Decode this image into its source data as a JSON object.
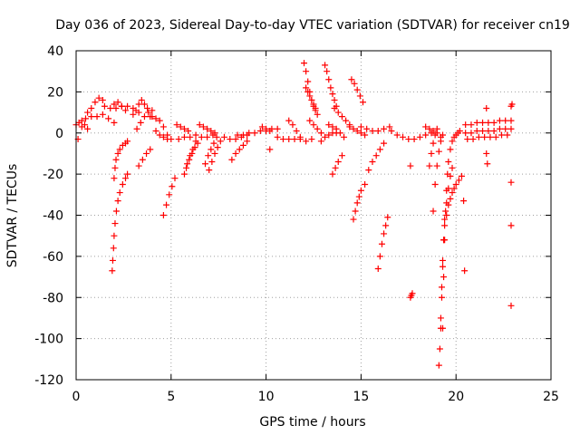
{
  "chart_data": {
    "type": "scatter",
    "title": "Day 036 of 2023, Sidereal Day-to-day VTEC variation (SDTVAR) for receiver cn19",
    "xlabel": "GPS time / hours",
    "ylabel": "SDTVAR / TECUs",
    "xlim": [
      0,
      25
    ],
    "ylim": [
      -120,
      40
    ],
    "x_ticks": [
      0,
      5,
      10,
      15,
      20,
      25
    ],
    "y_ticks": [
      -120,
      -100,
      -80,
      -60,
      -40,
      -20,
      0,
      20,
      40
    ],
    "grid": true,
    "marker": "+",
    "color": "#ff0000",
    "segments": [
      {
        "x": [
          0.0,
          0.15,
          0.3,
          0.45,
          0.6
        ],
        "y": [
          4,
          5,
          3,
          4,
          2
        ]
      },
      {
        "x": [
          0.6,
          0.8,
          1.0,
          1.2,
          1.4,
          1.5
        ],
        "y": [
          10,
          12,
          15,
          17,
          16,
          13
        ]
      },
      {
        "x": [
          0.3,
          0.5,
          0.8,
          1.1,
          1.4,
          1.7,
          2.0
        ],
        "y": [
          6,
          7,
          8,
          8,
          9,
          7,
          5
        ]
      },
      {
        "x": [
          1.8,
          2.0,
          2.2,
          2.4,
          2.6
        ],
        "y": [
          12,
          14,
          15,
          13,
          11
        ]
      },
      {
        "x": [
          2.1,
          2.4,
          2.7,
          3.0,
          3.3
        ],
        "y": [
          12,
          13,
          13,
          12,
          10
        ]
      },
      {
        "x": [
          2.0,
          2.05,
          2.1,
          2.2,
          2.3,
          2.45,
          2.6,
          2.7
        ],
        "y": [
          -22,
          -17,
          -13,
          -10,
          -8,
          -6,
          -5,
          -4
        ]
      },
      {
        "x": [
          1.9,
          1.93,
          1.97,
          2.0,
          2.05,
          2.12,
          2.2,
          2.3,
          2.45,
          2.6,
          2.7
        ],
        "y": [
          -67,
          -62,
          -56,
          -50,
          -44,
          -38,
          -33,
          -29,
          -25,
          -22,
          -20
        ]
      },
      {
        "x": [
          3.0,
          3.15,
          3.3,
          3.45,
          3.6,
          3.75,
          3.9
        ],
        "y": [
          9,
          11,
          14,
          16,
          14,
          12,
          8
        ]
      },
      {
        "x": [
          3.2,
          3.4,
          3.6,
          3.8,
          4.0
        ],
        "y": [
          2,
          5,
          8,
          10,
          11
        ]
      },
      {
        "x": [
          3.3,
          3.5,
          3.7,
          3.9
        ],
        "y": [
          -16,
          -13,
          -10,
          -8
        ]
      },
      {
        "x": [
          4.0,
          4.2,
          4.4,
          4.6,
          4.8
        ],
        "y": [
          8,
          7,
          6,
          3,
          -1
        ]
      },
      {
        "x": [
          4.2,
          4.4,
          4.6,
          4.8,
          5.0
        ],
        "y": [
          1,
          -1,
          -2,
          -3,
          -3
        ]
      },
      {
        "x": [
          4.6,
          4.75,
          4.9,
          5.05,
          5.2
        ],
        "y": [
          -40,
          -35,
          -30,
          -26,
          -22
        ]
      },
      {
        "x": [
          5.3,
          5.5,
          5.7,
          5.9
        ],
        "y": [
          4,
          3,
          2,
          1
        ]
      },
      {
        "x": [
          5.4,
          5.7,
          6.0,
          6.3,
          6.6,
          6.9,
          7.2
        ],
        "y": [
          -3,
          -2,
          -2,
          -1,
          -2,
          -2,
          -1
        ]
      },
      {
        "x": [
          5.7,
          5.85,
          6.0,
          6.15,
          6.3
        ],
        "y": [
          -20,
          -15,
          -11,
          -8,
          -4
        ]
      },
      {
        "x": [
          5.8,
          5.95,
          6.1,
          6.25,
          6.4
        ],
        "y": [
          -17,
          -13,
          -10,
          -7,
          -5
        ]
      },
      {
        "x": [
          6.5,
          6.7,
          6.9,
          7.1,
          7.3
        ],
        "y": [
          4,
          3,
          2,
          1,
          0
        ]
      },
      {
        "x": [
          6.8,
          6.95,
          7.1,
          7.25,
          7.4
        ],
        "y": [
          -15,
          -11,
          -8,
          -5,
          -2
        ]
      },
      {
        "x": [
          7.0,
          7.15,
          7.3,
          7.45,
          7.6
        ],
        "y": [
          -18,
          -14,
          -10,
          -7,
          -4
        ]
      },
      {
        "x": [
          7.8,
          8.1,
          8.4,
          8.7,
          9.0
        ],
        "y": [
          -2,
          -3,
          -3,
          -2,
          -1
        ]
      },
      {
        "x": [
          8.2,
          8.4,
          8.6,
          8.8,
          9.0
        ],
        "y": [
          -13,
          -10,
          -8,
          -6,
          -4
        ]
      },
      {
        "x": [
          8.5,
          8.8,
          9.1,
          9.4,
          9.7,
          10.0,
          10.3,
          10.6
        ],
        "y": [
          -1,
          -1,
          0,
          0,
          1,
          1,
          2,
          2
        ]
      },
      {
        "x": [
          9.8,
          10.0,
          10.2
        ],
        "y": [
          3,
          2,
          1
        ]
      },
      {
        "x": [
          10.6,
          10.9,
          11.2,
          11.5,
          11.8,
          12.1,
          12.4
        ],
        "y": [
          -2,
          -3,
          -3,
          -3,
          -3,
          -4,
          -3
        ]
      },
      {
        "x": [
          11.2,
          11.4,
          11.6,
          11.8
        ],
        "y": [
          6,
          4,
          1,
          -2
        ]
      },
      {
        "x": [
          12.0,
          12.1,
          12.2,
          12.3,
          12.4,
          12.5,
          12.6
        ],
        "y": [
          34,
          30,
          25,
          20,
          16,
          13,
          11
        ]
      },
      {
        "x": [
          12.1,
          12.2,
          12.3,
          12.4,
          12.5,
          12.6,
          12.7
        ],
        "y": [
          22,
          20,
          18,
          16,
          14,
          12,
          9
        ]
      },
      {
        "x": [
          12.3,
          12.5,
          12.7,
          12.9
        ],
        "y": [
          6,
          4,
          2,
          0
        ]
      },
      {
        "x": [
          13.1,
          13.2,
          13.3,
          13.4,
          13.5,
          13.6,
          13.7
        ],
        "y": [
          33,
          30,
          26,
          22,
          19,
          16,
          13
        ]
      },
      {
        "x": [
          12.9,
          13.1,
          13.3,
          13.5,
          13.7
        ],
        "y": [
          -4,
          -2,
          -1,
          0,
          0
        ]
      },
      {
        "x": [
          13.6,
          13.8,
          14.0,
          14.2,
          14.4
        ],
        "y": [
          12,
          10,
          8,
          6,
          4
        ]
      },
      {
        "x": [
          13.3,
          13.5,
          13.7,
          13.9,
          14.1
        ],
        "y": [
          4,
          3,
          2,
          0,
          -2
        ]
      },
      {
        "x": [
          13.5,
          13.65,
          13.8,
          14.0
        ],
        "y": [
          -20,
          -17,
          -14,
          -11
        ]
      },
      {
        "x": [
          14.4,
          14.6,
          14.8,
          15.0,
          15.2
        ],
        "y": [
          3,
          2,
          1,
          0,
          -1
        ]
      },
      {
        "x": [
          14.5,
          14.65,
          14.8,
          14.95,
          15.1
        ],
        "y": [
          26,
          24,
          21,
          18,
          15
        ]
      },
      {
        "x": [
          14.6,
          14.7,
          14.8,
          14.9,
          15.0,
          15.2
        ],
        "y": [
          -42,
          -38,
          -34,
          -31,
          -28,
          -25
        ]
      },
      {
        "x": [
          15.0,
          15.3,
          15.6,
          15.9,
          16.2,
          16.5
        ],
        "y": [
          3,
          2,
          1,
          1,
          2,
          3
        ]
      },
      {
        "x": [
          15.4,
          15.6,
          15.8,
          16.0,
          16.2
        ],
        "y": [
          -18,
          -14,
          -11,
          -8,
          -5
        ]
      },
      {
        "x": [
          15.9,
          16.0,
          16.1,
          16.2,
          16.3,
          16.4
        ],
        "y": [
          -66,
          -60,
          -54,
          -49,
          -45,
          -41
        ]
      },
      {
        "x": [
          16.6,
          16.9,
          17.2,
          17.5,
          17.8,
          18.1,
          18.4,
          18.7
        ],
        "y": [
          1,
          -1,
          -2,
          -3,
          -3,
          -2,
          -1,
          0
        ]
      },
      {
        "x": [
          17.6
        ],
        "y": [
          -16
        ]
      },
      {
        "x": [
          17.6,
          17.65,
          17.7
        ],
        "y": [
          -80,
          -79,
          -78
        ]
      },
      {
        "x": [
          18.4,
          18.6,
          18.8,
          19.0,
          19.2
        ],
        "y": [
          3,
          2,
          1,
          0,
          -2
        ]
      },
      {
        "x": [
          18.6,
          18.7,
          18.8,
          18.9,
          19.0
        ],
        "y": [
          -16,
          -10,
          -5,
          -1,
          2
        ]
      },
      {
        "x": [
          18.8,
          18.9,
          19.0,
          19.1,
          19.2,
          19.3
        ],
        "y": [
          -38,
          -25,
          -16,
          -9,
          -4,
          -1
        ]
      },
      {
        "x": [
          19.1,
          19.15,
          19.2,
          19.25,
          19.3,
          19.35,
          19.4,
          19.5,
          19.6,
          19.7,
          19.8
        ],
        "y": [
          -113,
          -105,
          -95,
          -80,
          -65,
          -52,
          -42,
          -34,
          -27,
          -21,
          -17
        ]
      },
      {
        "x": [
          19.2,
          19.25,
          19.3,
          19.35,
          19.4,
          19.5,
          19.6,
          19.7,
          19.8,
          19.9,
          20.0,
          20.15,
          20.3
        ],
        "y": [
          -90,
          -75,
          -62,
          -52,
          -45,
          -40,
          -35,
          -32,
          -29,
          -27,
          -25,
          -23,
          -21
        ]
      },
      {
        "x": [
          19.3,
          19.35,
          19.4,
          19.45,
          19.5,
          19.55,
          19.6,
          19.7,
          19.8,
          19.9,
          20.0,
          20.1,
          20.2
        ],
        "y": [
          -95,
          -70,
          -52,
          -38,
          -28,
          -20,
          -14,
          -8,
          -4,
          -2,
          -1,
          0,
          1
        ]
      },
      {
        "x": [
          20.4
        ],
        "y": [
          -33
        ]
      },
      {
        "x": [
          20.45
        ],
        "y": [
          -67
        ]
      },
      {
        "x": [
          20.5,
          20.8,
          21.1,
          21.4,
          21.7,
          22.0,
          22.3,
          22.6,
          22.9
        ],
        "y": [
          4,
          4,
          5,
          5,
          5,
          5,
          6,
          6,
          6
        ]
      },
      {
        "x": [
          20.5,
          20.8,
          21.1,
          21.4,
          21.7,
          22.0,
          22.3,
          22.6,
          22.9
        ],
        "y": [
          0,
          0,
          1,
          1,
          1,
          1,
          2,
          2,
          2
        ]
      },
      {
        "x": [
          20.6,
          20.9,
          21.2,
          21.5,
          21.8,
          22.1,
          22.4,
          22.7
        ],
        "y": [
          -3,
          -3,
          -2,
          -2,
          -2,
          -2,
          -1,
          -1
        ]
      },
      {
        "x": [
          21.6
        ],
        "y": [
          12
        ]
      },
      {
        "x": [
          21.6,
          21.65
        ],
        "y": [
          -10,
          -15
        ]
      },
      {
        "x": [
          22.9,
          22.95
        ],
        "y": [
          13,
          14
        ]
      },
      {
        "x": [
          22.9
        ],
        "y": [
          -24
        ]
      },
      {
        "x": [
          22.9
        ],
        "y": [
          -45
        ]
      },
      {
        "x": [
          22.9
        ],
        "y": [
          -84
        ]
      },
      {
        "x": [
          10.2
        ],
        "y": [
          -8
        ]
      },
      {
        "x": [
          0.1
        ],
        "y": [
          -3
        ]
      }
    ]
  }
}
